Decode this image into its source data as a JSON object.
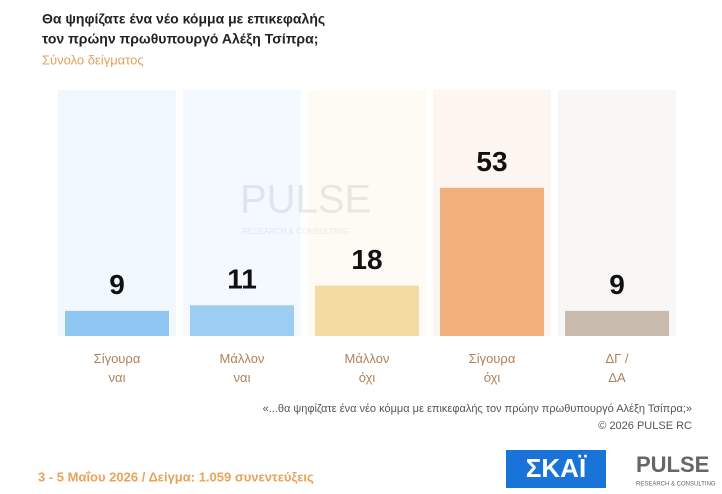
{
  "chart_data": {
    "type": "bar",
    "title": [
      "Θα ψηφίζατε ένα νέο κόμμα με επικεφαλής",
      "τον πρώην πρωθυπουργό Αλέξη Τσίπρα;"
    ],
    "subtitle": "Σύνολο δείγματος",
    "categories": [
      "Σίγουρα ναι",
      "Μάλλον ναι",
      "Μάλλον όχι",
      "Σίγουρα όχι",
      "ΔΓ / ΔΑ"
    ],
    "values": [
      9,
      11,
      18,
      53,
      9
    ],
    "colors": [
      "#8fc6f1",
      "#9ecdf3",
      "#f2dca2",
      "#f2b07c",
      "#c8bbad"
    ],
    "ylim": [
      0,
      88
    ],
    "note": "«...θα ψηφίζατε ένα νέο κόμμα με επικεφαλής τον πρώην πρωθυπουργό Αλέξη Τσίπρα;»",
    "copyright": "©  2026  PULSE RC",
    "footer": "3 - 5  Μαΐου 2026  /  Δείγμα:  1.059 συνεντεύξεις"
  },
  "logos": {
    "skai": "ΣΚΑΪ",
    "pulse": "PULSE",
    "pulse_tagline": "RESEARCH & CONSULTING"
  }
}
